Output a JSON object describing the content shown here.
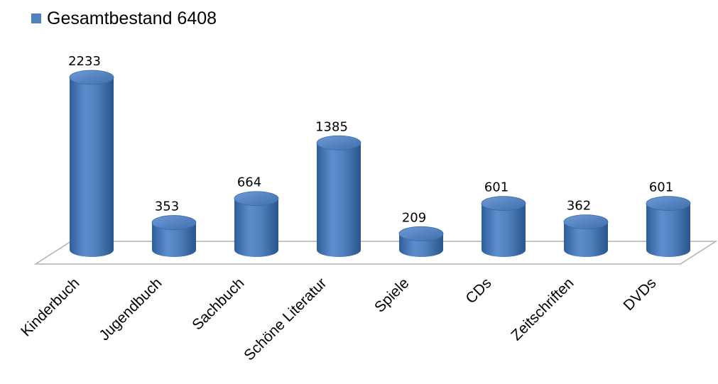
{
  "chart_data": {
    "type": "bar",
    "legend": {
      "entries": [
        "Gesamtbestand 6408"
      ],
      "position": "top-left"
    },
    "categories": [
      "Kinderbuch",
      "Jugendbuch",
      "Sachbuch",
      "Schöne Literatur",
      "Spiele",
      "CDs",
      "Zeitschriften",
      "DVDs"
    ],
    "series": [
      {
        "name": "Gesamtbestand 6408",
        "values": [
          2233,
          353,
          664,
          1385,
          209,
          601,
          362,
          601
        ]
      }
    ],
    "data_labels": [
      "2233",
      "353",
      "664",
      "1385",
      "209",
      "601",
      "362",
      "601"
    ],
    "colors": {
      "bar": "#4f81bd",
      "bar_dark": "#2c5f9b",
      "bar_light": "#7ba3d8",
      "floor_stroke": "#b0b0b0"
    },
    "style": "3d-cylinder",
    "grid": false,
    "axis_labels_visible": false
  }
}
